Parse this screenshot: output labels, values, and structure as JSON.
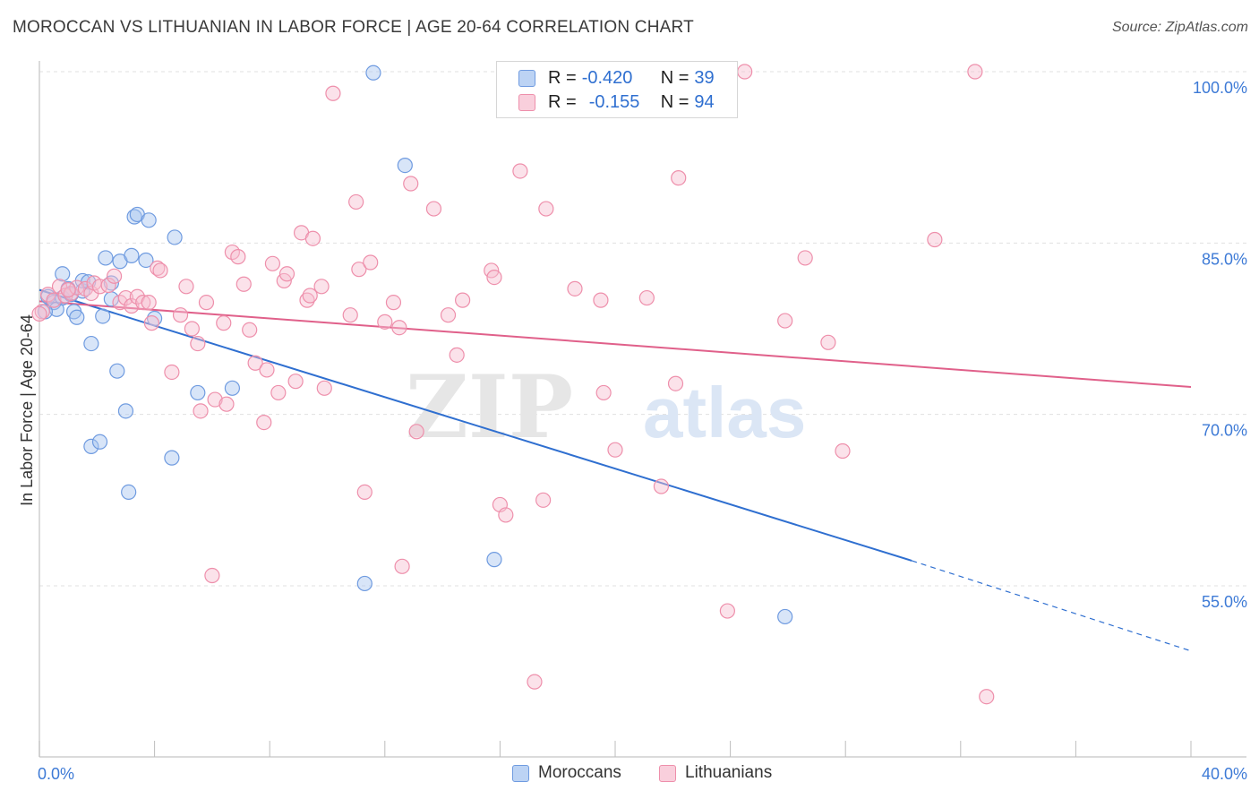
{
  "header": {
    "title": "MOROCCAN VS LITHUANIAN IN LABOR FORCE | AGE 20-64 CORRELATION CHART",
    "source": "Source: ZipAtlas.com"
  },
  "watermark": {
    "zip": "ZIP",
    "atlas": "atlas"
  },
  "legend": {
    "rows": [
      {
        "r_label": "R =",
        "r_value": "-0.420",
        "n_label": "N =",
        "n_value": "39",
        "color": "#a9c6f0",
        "border": "#6f9be0"
      },
      {
        "r_label": "R =",
        "r_value": "-0.155",
        "n_label": "N =",
        "n_value": "94",
        "color": "#f7bfd0",
        "border": "#ee8fab"
      }
    ]
  },
  "bottom_legend": [
    "Moroccans",
    "Lithuanians"
  ],
  "chart_data": {
    "type": "scatter",
    "title": "MOROCCAN VS LITHUANIAN IN LABOR FORCE | AGE 20-64 CORRELATION CHART",
    "xlabel": "",
    "ylabel": "In Labor Force | Age 20-64",
    "xlim": [
      0,
      40
    ],
    "ylim": [
      42,
      101
    ],
    "x_tick_labels": [
      "0.0%",
      "40.0%"
    ],
    "y_ticks": [
      55,
      70,
      85,
      100
    ],
    "y_tick_labels": [
      "55.0%",
      "70.0%",
      "85.0%",
      "100.0%"
    ],
    "grid": true,
    "legend_position": "top-center",
    "colors": {
      "moroccans": "#2f6fd0",
      "lithuanians": "#e0608a",
      "axis_text": "#3d7ad6"
    },
    "series": [
      {
        "name": "Moroccans",
        "color": "#6f9be0",
        "fill": "#a9c6f0",
        "trend": {
          "x": [
            0,
            30.3
          ],
          "y": [
            80.9,
            57.2
          ],
          "dashed_to": [
            40,
            49.3
          ]
        },
        "points": [
          [
            0.3,
            80.3
          ],
          [
            0.5,
            79.8
          ],
          [
            0.6,
            79.2
          ],
          [
            0.8,
            80.2
          ],
          [
            0.8,
            82.3
          ],
          [
            1.0,
            81.0
          ],
          [
            1.1,
            80.5
          ],
          [
            1.2,
            79.0
          ],
          [
            1.3,
            78.5
          ],
          [
            1.5,
            80.8
          ],
          [
            1.5,
            81.7
          ],
          [
            1.7,
            81.6
          ],
          [
            1.8,
            76.2
          ],
          [
            1.8,
            67.2
          ],
          [
            2.1,
            67.6
          ],
          [
            2.2,
            78.6
          ],
          [
            2.3,
            83.7
          ],
          [
            2.5,
            81.5
          ],
          [
            2.5,
            80.1
          ],
          [
            2.7,
            73.8
          ],
          [
            2.8,
            83.4
          ],
          [
            3.0,
            70.3
          ],
          [
            3.1,
            63.2
          ],
          [
            3.2,
            83.9
          ],
          [
            3.3,
            87.3
          ],
          [
            3.4,
            87.5
          ],
          [
            3.7,
            83.5
          ],
          [
            3.8,
            87.0
          ],
          [
            4.0,
            78.4
          ],
          [
            4.6,
            66.2
          ],
          [
            4.7,
            85.5
          ],
          [
            5.5,
            71.9
          ],
          [
            6.7,
            72.3
          ],
          [
            11.3,
            55.2
          ],
          [
            11.6,
            99.9
          ],
          [
            12.7,
            91.8
          ],
          [
            15.8,
            57.3
          ],
          [
            25.9,
            52.3
          ],
          [
            0.2,
            79.0
          ]
        ]
      },
      {
        "name": "Lithuanians",
        "color": "#ee8fab",
        "fill": "#f7bfd0",
        "trend": {
          "x": [
            0,
            40
          ],
          "y": [
            79.9,
            72.4
          ]
        },
        "points": [
          [
            0.1,
            79.0
          ],
          [
            0.3,
            80.5
          ],
          [
            0.5,
            80.0
          ],
          [
            0.7,
            81.2
          ],
          [
            0.9,
            80.4
          ],
          [
            1.1,
            80.6
          ],
          [
            1.3,
            81.1
          ],
          [
            1.6,
            81.0
          ],
          [
            1.8,
            80.6
          ],
          [
            1.9,
            81.5
          ],
          [
            2.1,
            81.2
          ],
          [
            2.4,
            81.3
          ],
          [
            2.6,
            82.1
          ],
          [
            2.8,
            79.8
          ],
          [
            3.0,
            80.2
          ],
          [
            3.2,
            79.5
          ],
          [
            3.4,
            80.3
          ],
          [
            3.6,
            79.8
          ],
          [
            3.8,
            79.8
          ],
          [
            3.9,
            78.0
          ],
          [
            4.1,
            82.8
          ],
          [
            4.2,
            82.6
          ],
          [
            4.6,
            73.7
          ],
          [
            4.9,
            78.7
          ],
          [
            5.1,
            81.2
          ],
          [
            5.3,
            77.5
          ],
          [
            5.5,
            76.2
          ],
          [
            5.6,
            70.3
          ],
          [
            5.8,
            79.8
          ],
          [
            6.0,
            55.9
          ],
          [
            6.1,
            71.3
          ],
          [
            6.4,
            78.0
          ],
          [
            6.5,
            70.9
          ],
          [
            6.7,
            84.2
          ],
          [
            6.9,
            83.8
          ],
          [
            7.1,
            81.4
          ],
          [
            7.3,
            77.4
          ],
          [
            7.5,
            74.5
          ],
          [
            7.8,
            69.3
          ],
          [
            7.9,
            73.9
          ],
          [
            8.1,
            83.2
          ],
          [
            8.3,
            71.9
          ],
          [
            8.5,
            81.7
          ],
          [
            8.6,
            82.3
          ],
          [
            8.9,
            72.9
          ],
          [
            9.1,
            85.9
          ],
          [
            9.3,
            80.0
          ],
          [
            9.4,
            80.4
          ],
          [
            9.5,
            85.4
          ],
          [
            9.8,
            81.2
          ],
          [
            9.9,
            72.3
          ],
          [
            10.2,
            98.1
          ],
          [
            10.8,
            78.7
          ],
          [
            11.0,
            88.6
          ],
          [
            11.1,
            82.7
          ],
          [
            11.3,
            63.2
          ],
          [
            11.5,
            83.3
          ],
          [
            12.0,
            78.1
          ],
          [
            12.3,
            79.8
          ],
          [
            12.5,
            77.6
          ],
          [
            12.6,
            56.7
          ],
          [
            12.9,
            90.2
          ],
          [
            13.1,
            68.5
          ],
          [
            13.7,
            88.0
          ],
          [
            14.2,
            78.7
          ],
          [
            14.5,
            75.2
          ],
          [
            14.7,
            80.0
          ],
          [
            15.7,
            82.6
          ],
          [
            15.8,
            82.0
          ],
          [
            16.0,
            62.1
          ],
          [
            16.2,
            61.2
          ],
          [
            16.7,
            91.3
          ],
          [
            17.2,
            46.6
          ],
          [
            17.5,
            62.5
          ],
          [
            17.6,
            88.0
          ],
          [
            18.6,
            81.0
          ],
          [
            19.5,
            80.0
          ],
          [
            19.6,
            71.9
          ],
          [
            20.0,
            66.9
          ],
          [
            21.1,
            80.2
          ],
          [
            21.6,
            63.7
          ],
          [
            22.2,
            90.7
          ],
          [
            22.1,
            72.7
          ],
          [
            23.9,
            52.8
          ],
          [
            24.5,
            100.0
          ],
          [
            25.9,
            78.2
          ],
          [
            26.6,
            83.7
          ],
          [
            27.4,
            76.3
          ],
          [
            27.9,
            66.8
          ],
          [
            31.1,
            85.3
          ],
          [
            32.5,
            100.0
          ],
          [
            32.9,
            45.3
          ],
          [
            0.0,
            78.8
          ],
          [
            1.0,
            80.9
          ]
        ]
      }
    ]
  }
}
